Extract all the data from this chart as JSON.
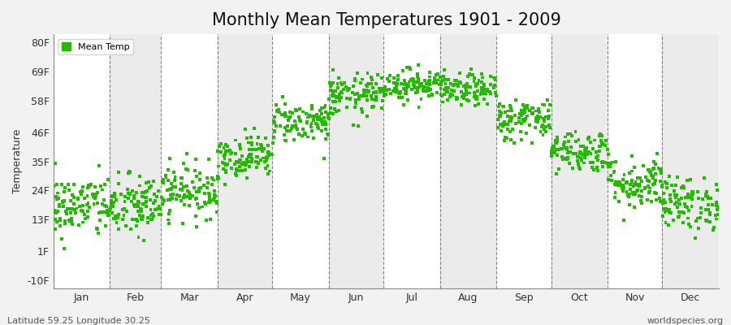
{
  "title": "Monthly Mean Temperatures 1901 - 2009",
  "ylabel": "Temperature",
  "yticks": [
    -10,
    1,
    13,
    24,
    35,
    46,
    58,
    69,
    80
  ],
  "ytick_labels": [
    "-10F",
    "1F",
    "13F",
    "24F",
    "35F",
    "46F",
    "58F",
    "69F",
    "80F"
  ],
  "months": [
    "Jan",
    "Feb",
    "Mar",
    "Apr",
    "May",
    "Jun",
    "Jul",
    "Aug",
    "Sep",
    "Oct",
    "Nov",
    "Dec"
  ],
  "month_days": [
    31,
    28,
    31,
    30,
    31,
    30,
    31,
    31,
    30,
    31,
    30,
    31
  ],
  "dot_color": "#22BB00",
  "bg_color": "#F2F2F2",
  "band_colors": [
    "#FFFFFF",
    "#EBEBEB"
  ],
  "footer_left": "Latitude 59.25 Longitude 30.25",
  "footer_right": "worldspecies.org",
  "legend_label": "Mean Temp",
  "monthly_means_F": [
    18,
    18,
    24,
    37,
    50,
    60,
    64,
    62,
    51,
    39,
    27,
    19
  ],
  "monthly_stds_F": [
    6,
    6,
    5,
    4,
    4,
    4,
    3,
    3,
    4,
    4,
    5,
    5
  ],
  "n_years": 109,
  "ylim": [
    -13,
    83
  ],
  "xlim": [
    0,
    365
  ],
  "title_fontsize": 15,
  "axis_fontsize": 9,
  "footer_fontsize": 8,
  "dot_size": 8
}
